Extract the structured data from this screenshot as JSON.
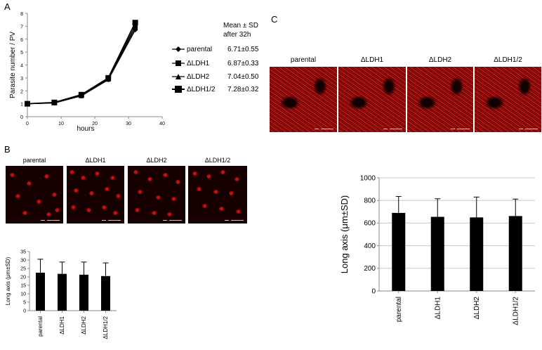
{
  "panels": {
    "a": "A",
    "b": "B",
    "c": "C"
  },
  "panel_a": {
    "ylabel": "Parasite number / PV",
    "xlabel": "hours",
    "legend_header_line1": "Mean ±  SD",
    "legend_header_line2": "after 32h",
    "legend": [
      {
        "name": "parental",
        "marker": "diamond",
        "value": "6.71±0.55"
      },
      {
        "name": "ΔLDH1",
        "marker": "square",
        "value": "6.87±0.33"
      },
      {
        "name": "ΔLDH2",
        "marker": "triangle",
        "value": "7.04±0.50"
      },
      {
        "name": "ΔLDH1/2",
        "marker": "square",
        "value": "7.28±0.32"
      }
    ]
  },
  "panel_b": {
    "image_labels": [
      "parental",
      "ΔLDH1",
      "ΔLDH2",
      "ΔLDH1/2"
    ],
    "ylabel": "Long axis (μm±SD)"
  },
  "panel_c": {
    "image_labels": [
      "parental",
      "ΔLDH1",
      "ΔLDH2",
      "ΔLDH1/2"
    ],
    "ylabel": "Long axis (μm±SD)"
  },
  "chart_data": [
    {
      "type": "line",
      "xlabel": "hours",
      "ylabel": "Parasite number / PV",
      "xlim": [
        0,
        40
      ],
      "ylim": [
        0,
        8
      ],
      "xticks": [
        0,
        10,
        20,
        30,
        40
      ],
      "yticks": [
        0,
        1,
        2,
        3,
        4,
        5,
        6,
        7,
        8
      ],
      "x": [
        0,
        8,
        16,
        24,
        32
      ],
      "series": [
        {
          "name": "parental",
          "values": [
            1.0,
            1.05,
            1.6,
            2.85,
            6.71
          ]
        },
        {
          "name": "ΔLDH1",
          "values": [
            1.0,
            1.08,
            1.62,
            2.9,
            6.87
          ]
        },
        {
          "name": "ΔLDH2",
          "values": [
            1.0,
            1.06,
            1.65,
            2.95,
            7.04
          ]
        },
        {
          "name": "ΔLDH1/2",
          "values": [
            1.0,
            1.1,
            1.7,
            3.0,
            7.28
          ]
        }
      ],
      "grid": false,
      "legend": "right"
    },
    {
      "type": "bar",
      "ylabel": "Long axis (μm±SD)",
      "categories": [
        "parental",
        "ΔLDH1",
        "ΔLDH2",
        "ΔLDH1/2"
      ],
      "values": [
        22.5,
        21.8,
        21.3,
        20.5
      ],
      "errors": [
        8.0,
        7.0,
        7.5,
        7.8
      ],
      "ylim": [
        0,
        35
      ],
      "yticks": [
        0,
        5,
        10,
        15,
        20,
        25,
        30,
        35
      ],
      "grid": false
    },
    {
      "type": "bar",
      "ylabel": "Long axis (μm±SD)",
      "categories": [
        "parental",
        "ΔLDH1",
        "ΔLDH2",
        "ΔLDH1/2"
      ],
      "values": [
        690,
        655,
        650,
        662
      ],
      "errors": [
        145,
        160,
        180,
        150
      ],
      "ylim": [
        0,
        1000
      ],
      "yticks": [
        0,
        200,
        400,
        600,
        800,
        1000
      ],
      "grid": true
    }
  ]
}
